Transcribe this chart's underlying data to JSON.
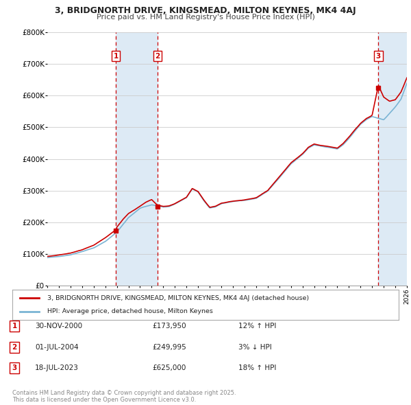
{
  "title1": "3, BRIDGNORTH DRIVE, KINGSMEAD, MILTON KEYNES, MK4 4AJ",
  "title2": "Price paid vs. HM Land Registry's House Price Index (HPI)",
  "sale_dates": [
    2000.917,
    2004.5,
    2023.542
  ],
  "sale_prices": [
    173950,
    249995,
    625000
  ],
  "sale_labels": [
    "1",
    "2",
    "3"
  ],
  "hpi_color": "#7ab4d4",
  "price_color": "#cc0000",
  "annotation_bg": "#ddeaf5",
  "vline_color": "#cc0000",
  "ylabel_values": [
    0,
    100000,
    200000,
    300000,
    400000,
    500000,
    600000,
    700000,
    800000
  ],
  "ylabel_texts": [
    "£0",
    "£100K",
    "£200K",
    "£300K",
    "£400K",
    "£500K",
    "£600K",
    "£700K",
    "£800K"
  ],
  "xmin": 1995,
  "xmax": 2026,
  "ymin": 0,
  "ymax": 800000,
  "legend_label_red": "3, BRIDGNORTH DRIVE, KINGSMEAD, MILTON KEYNES, MK4 4AJ (detached house)",
  "legend_label_blue": "HPI: Average price, detached house, Milton Keynes",
  "table_rows": [
    {
      "label": "1",
      "date": "30-NOV-2000",
      "price": "£173,950",
      "hpi_pct": "12% ↑ HPI"
    },
    {
      "label": "2",
      "date": "01-JUL-2004",
      "price": "£249,995",
      "hpi_pct": "3% ↓ HPI"
    },
    {
      "label": "3",
      "date": "18-JUL-2023",
      "price": "£625,000",
      "hpi_pct": "18% ↑ HPI"
    }
  ],
  "footer_text": "Contains HM Land Registry data © Crown copyright and database right 2025.\nThis data is licensed under the Open Government Licence v3.0.",
  "bg_color": "#ffffff"
}
